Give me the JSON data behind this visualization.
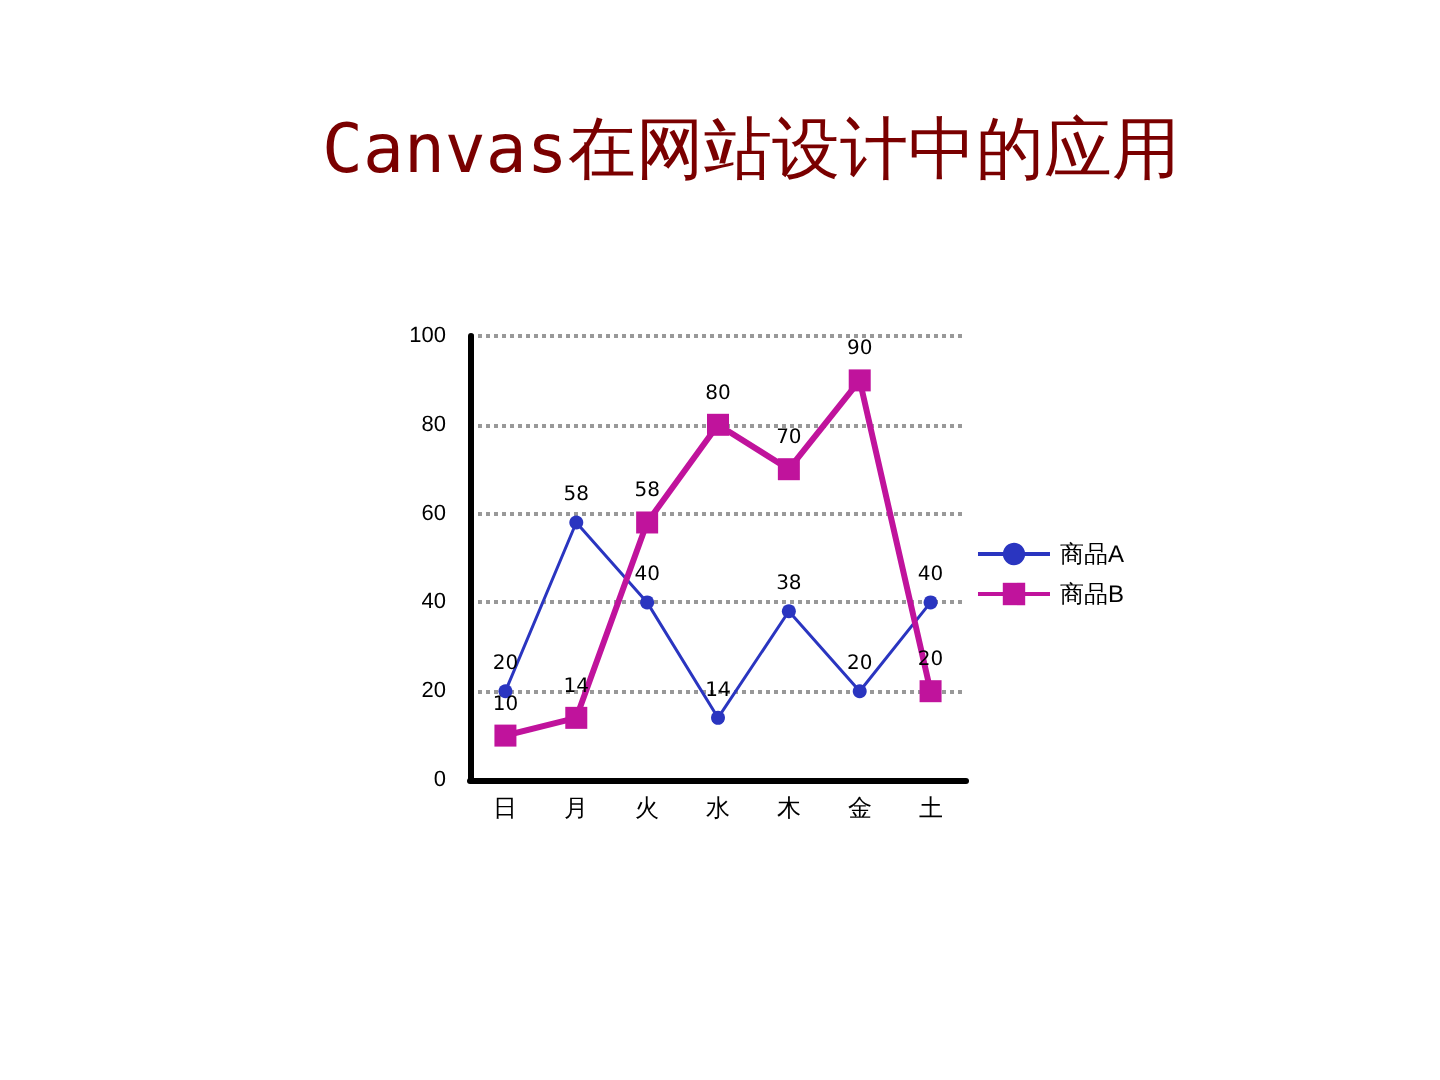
{
  "chart_data": {
    "type": "line",
    "title": "Canvas在网站设计中的应用",
    "categories": [
      "日",
      "月",
      "火",
      "水",
      "木",
      "金",
      "土"
    ],
    "series": [
      {
        "name": "商品A",
        "color": "#2a35c0",
        "marker": "circle",
        "values": [
          20,
          58,
          40,
          14,
          38,
          20,
          40
        ]
      },
      {
        "name": "商品B",
        "color": "#c0139c",
        "marker": "square",
        "values": [
          10,
          14,
          58,
          80,
          70,
          90,
          20
        ]
      }
    ],
    "ylim": [
      0,
      100
    ],
    "yticks": [
      0,
      20,
      40,
      60,
      80,
      100
    ],
    "grid": "y",
    "legend": "right",
    "data_labels": true
  }
}
